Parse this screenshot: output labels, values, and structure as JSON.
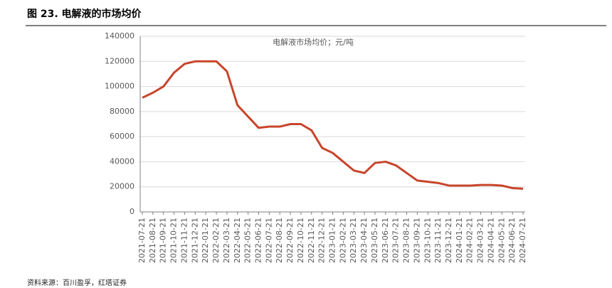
{
  "chart_data": {
    "type": "line",
    "title": "图 23. 电解液的市场均价",
    "source": "资料来源：百川盈孚，红塔证券",
    "categories": [
      "2021-07-21",
      "2021-08-21",
      "2021-09-21",
      "2021-10-21",
      "2021-11-21",
      "2021-12-21",
      "2022-01-21",
      "2022-02-21",
      "2022-03-21",
      "2022-04-21",
      "2022-05-21",
      "2022-06-21",
      "2022-07-21",
      "2022-08-21",
      "2022-09-21",
      "2022-10-21",
      "2022-11-21",
      "2022-12-21",
      "2023-01-21",
      "2023-02-21",
      "2023-03-21",
      "2023-04-21",
      "2023-05-21",
      "2023-06-21",
      "2023-07-21",
      "2023-08-21",
      "2023-09-21",
      "2023-10-21",
      "2023-11-21",
      "2023-12-21",
      "2024-01-21",
      "2024-02-21",
      "2024-03-21",
      "2024-04-21",
      "2024-05-21",
      "2024-06-21",
      "2024-07-21"
    ],
    "series": [
      {
        "name": "电解液市场均价；元/吨",
        "color": "#c8452b",
        "values": [
          91000,
          95000,
          100000,
          111000,
          118000,
          120000,
          120000,
          120000,
          112000,
          85000,
          76000,
          67000,
          68000,
          68000,
          70000,
          70000,
          65000,
          51000,
          47000,
          40000,
          33000,
          31000,
          39000,
          40000,
          37000,
          31000,
          25000,
          24000,
          23000,
          21000,
          21000,
          21000,
          21500,
          21500,
          21000,
          19000,
          18500
        ]
      }
    ],
    "ylim": [
      0,
      140000
    ],
    "yticks": [
      0,
      20000,
      40000,
      60000,
      80000,
      100000,
      120000,
      140000
    ],
    "grid": true
  }
}
